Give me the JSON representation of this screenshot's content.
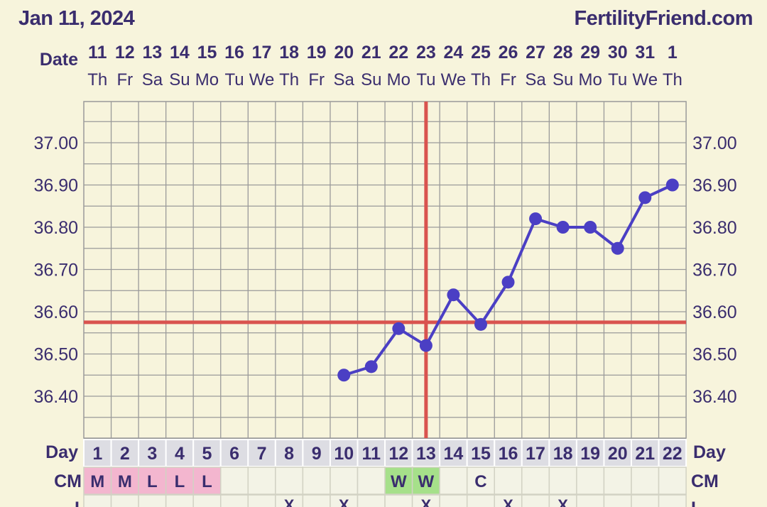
{
  "header": {
    "date": "Jan 11, 2024",
    "site": "FertilityFriend.com"
  },
  "labels": {
    "date_row": "Date",
    "day_row": "Day",
    "cm_row": "CM",
    "bottom_row": "I"
  },
  "colors": {
    "background": "#f7f4dc",
    "grid": "#9a9a9a",
    "line": "#4b3fc4",
    "coverline": "#d9534f",
    "text": "#3a2d6e",
    "cm_pink": "#f3b6cf",
    "cm_green": "#a6e08a",
    "cm_cell": "#f3f3e6",
    "day_cell": "#dddde3"
  },
  "chart_data": {
    "type": "line",
    "dates": [
      "11",
      "12",
      "13",
      "14",
      "15",
      "16",
      "17",
      "18",
      "19",
      "20",
      "21",
      "22",
      "23",
      "24",
      "25",
      "26",
      "27",
      "28",
      "29",
      "30",
      "31",
      "1"
    ],
    "weekdays": [
      "Th",
      "Fr",
      "Sa",
      "Su",
      "Mo",
      "Tu",
      "We",
      "Th",
      "Fr",
      "Sa",
      "Su",
      "Mo",
      "Tu",
      "We",
      "Th",
      "Fr",
      "Sa",
      "Su",
      "Mo",
      "Tu",
      "We",
      "Th"
    ],
    "cycle_days": [
      "1",
      "2",
      "3",
      "4",
      "5",
      "6",
      "7",
      "8",
      "9",
      "10",
      "11",
      "12",
      "13",
      "14",
      "15",
      "16",
      "17",
      "18",
      "19",
      "20",
      "21",
      "22"
    ],
    "temperatures": [
      null,
      null,
      null,
      null,
      null,
      null,
      null,
      null,
      null,
      36.45,
      36.47,
      36.56,
      36.52,
      36.64,
      36.57,
      36.67,
      36.82,
      36.8,
      36.8,
      36.75,
      36.87,
      36.9
    ],
    "y_ticks": [
      "37.00",
      "36.90",
      "36.80",
      "36.70",
      "36.60",
      "36.50",
      "36.40"
    ],
    "ylim": [
      36.33,
      37.09
    ],
    "coverline": 36.575,
    "ovulation_day": 13,
    "cm": [
      "M",
      "M",
      "L",
      "L",
      "L",
      "",
      "",
      "",
      "",
      "",
      "",
      "W",
      "W",
      "",
      "C",
      "",
      "",
      "",
      "",
      "",
      "",
      ""
    ],
    "cm_colors": [
      "pink",
      "pink",
      "pink",
      "pink",
      "pink",
      "",
      "",
      "",
      "",
      "",
      "",
      "green",
      "green",
      "",
      "",
      "",
      "",
      "",
      "",
      "",
      "",
      ""
    ],
    "bottom_marks": [
      "",
      "",
      "",
      "",
      "",
      "",
      "",
      "X",
      "",
      "X",
      "",
      "",
      "X",
      "",
      "",
      "X",
      "",
      "X",
      "",
      "",
      "",
      ""
    ],
    "grid": true
  }
}
